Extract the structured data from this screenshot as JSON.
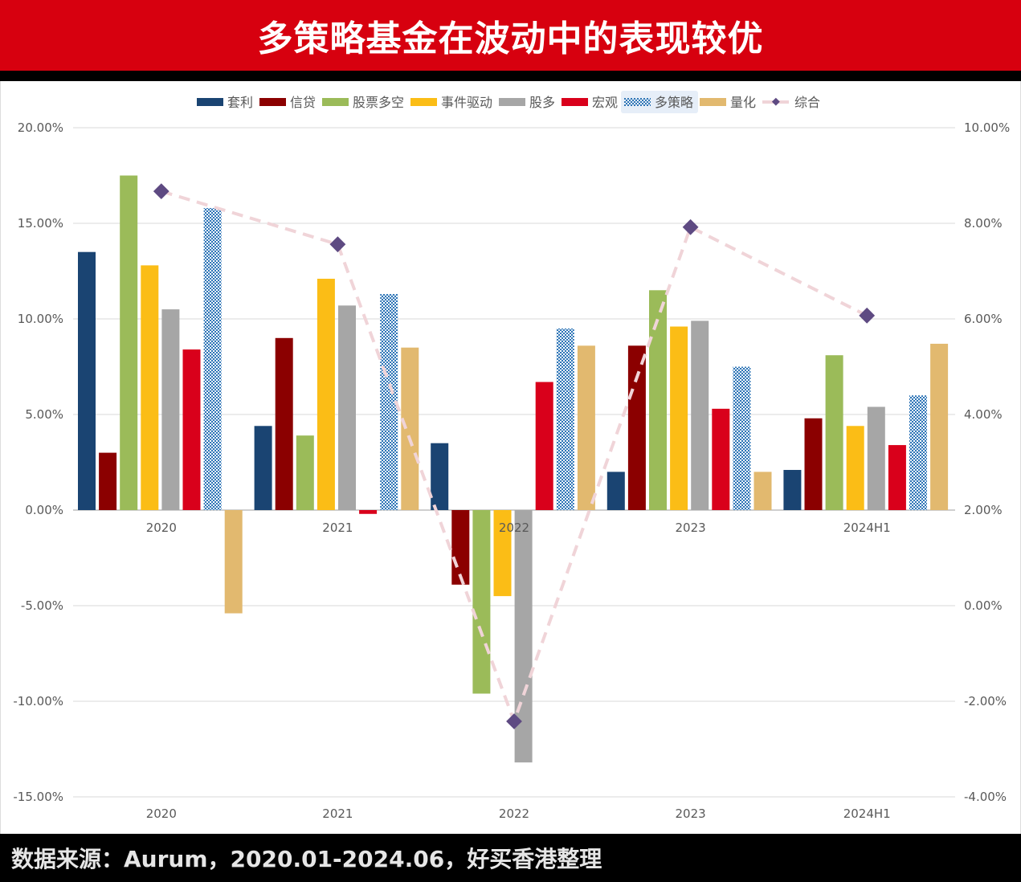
{
  "title": "多策略基金在波动中的表现较优",
  "footer": "数据来源：Aurum，2020.01-2024.06，好买香港整理",
  "chart_data": {
    "type": "bar",
    "title": "多策略基金在波动中的表现较优",
    "categories": [
      "2020",
      "2021",
      "2022",
      "2023",
      "2024H1"
    ],
    "left_axis": {
      "ticks": [
        "20.00%",
        "15.00%",
        "10.00%",
        "5.00%",
        "0.00%",
        "-5.00%",
        "-10.00%",
        "-15.00%"
      ],
      "ylim": [
        -15,
        20
      ],
      "step": 5
    },
    "right_axis": {
      "ticks": [
        "10.00%",
        "8.00%",
        "6.00%",
        "4.00%",
        "2.00%",
        "0.00%",
        "-2.00%",
        "-4.00%"
      ],
      "ylim": [
        -4,
        10
      ],
      "step": 2
    },
    "grid": true,
    "legend_position": "top",
    "series": [
      {
        "name": "套利",
        "color": "#1a4472",
        "pattern": false,
        "axis": "left",
        "values": [
          13.5,
          4.4,
          3.5,
          2.0,
          2.1
        ]
      },
      {
        "name": "信贷",
        "color": "#8b0000",
        "pattern": false,
        "axis": "left",
        "values": [
          3.0,
          9.0,
          -3.9,
          8.6,
          4.8
        ]
      },
      {
        "name": "股票多空",
        "color": "#9bbb59",
        "pattern": false,
        "axis": "left",
        "values": [
          17.5,
          3.9,
          -9.6,
          11.5,
          8.1
        ]
      },
      {
        "name": "事件驱动",
        "color": "#fbbd16",
        "pattern": false,
        "axis": "left",
        "values": [
          12.8,
          12.1,
          -4.5,
          9.6,
          4.4
        ]
      },
      {
        "name": "股多",
        "color": "#a6a6a6",
        "pattern": false,
        "axis": "left",
        "values": [
          10.5,
          10.7,
          -13.2,
          9.9,
          5.4
        ]
      },
      {
        "name": "宏观",
        "color": "#d9001b",
        "pattern": false,
        "axis": "left",
        "values": [
          8.4,
          -0.2,
          6.7,
          5.3,
          3.4
        ]
      },
      {
        "name": "多策略",
        "color": "#2e75b6",
        "pattern": true,
        "axis": "left",
        "values": [
          15.8,
          11.3,
          9.5,
          7.5,
          6.0
        ]
      },
      {
        "name": "量化",
        "color": "#e2b96f",
        "pattern": false,
        "axis": "left",
        "values": [
          -5.4,
          8.5,
          8.6,
          2.0,
          8.7
        ]
      }
    ],
    "line_series": {
      "name": "综合",
      "type": "line",
      "axis": "right",
      "line_color": "#f0d4d8",
      "marker_color": "#5e4a82",
      "values": [
        8.67,
        7.56,
        -2.42,
        7.92,
        6.07
      ]
    },
    "unit": "%"
  }
}
